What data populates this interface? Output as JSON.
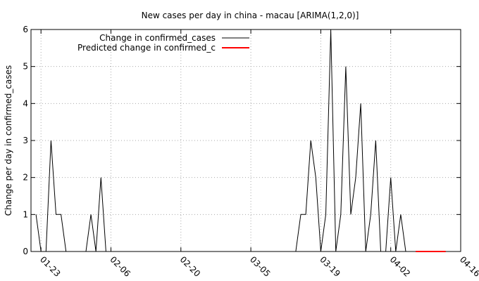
{
  "chart_data": {
    "type": "line",
    "title": "New cases per day in china - macau [ARIMA(1,2,0)]",
    "ylabel": "Change per day in confirmed_cases",
    "xlabel": "",
    "xlim": [
      "2020-01-21",
      "2020-04-16"
    ],
    "ylim": [
      0,
      6
    ],
    "x_ticks": [
      "01-23",
      "02-06",
      "02-20",
      "03-05",
      "03-19",
      "04-02",
      "04-16"
    ],
    "y_ticks": [
      0,
      1,
      2,
      3,
      4,
      5,
      6
    ],
    "grid": true,
    "legend_position": "top-left",
    "series": [
      {
        "name": "Change in confirmed_cases",
        "color": "#000000",
        "points": [
          [
            "2020-01-22",
            1
          ],
          [
            "2020-01-23",
            0
          ],
          [
            "2020-01-24",
            0
          ],
          [
            "2020-01-25",
            3
          ],
          [
            "2020-01-26",
            1
          ],
          [
            "2020-01-27",
            1
          ],
          [
            "2020-01-28",
            0
          ],
          [
            "2020-01-29",
            0
          ],
          [
            "2020-01-30",
            0
          ],
          [
            "2020-01-31",
            0
          ],
          [
            "2020-02-01",
            0
          ],
          [
            "2020-02-02",
            1
          ],
          [
            "2020-02-03",
            0
          ],
          [
            "2020-02-04",
            2
          ],
          [
            "2020-02-05",
            0
          ],
          [
            "2020-02-06",
            0
          ],
          [
            "2020-02-10",
            0
          ],
          [
            "2020-02-20",
            0
          ],
          [
            "2020-03-05",
            0
          ],
          [
            "2020-03-14",
            0
          ],
          [
            "2020-03-15",
            1
          ],
          [
            "2020-03-16",
            1
          ],
          [
            "2020-03-17",
            3
          ],
          [
            "2020-03-18",
            2
          ],
          [
            "2020-03-19",
            0
          ],
          [
            "2020-03-20",
            1
          ],
          [
            "2020-03-21",
            6
          ],
          [
            "2020-03-22",
            0
          ],
          [
            "2020-03-23",
            1
          ],
          [
            "2020-03-24",
            5
          ],
          [
            "2020-03-25",
            1
          ],
          [
            "2020-03-26",
            2
          ],
          [
            "2020-03-27",
            4
          ],
          [
            "2020-03-28",
            0
          ],
          [
            "2020-03-29",
            1
          ],
          [
            "2020-03-30",
            3
          ],
          [
            "2020-03-31",
            0
          ],
          [
            "2020-04-01",
            0
          ],
          [
            "2020-04-02",
            2
          ],
          [
            "2020-04-03",
            0
          ],
          [
            "2020-04-04",
            1
          ],
          [
            "2020-04-05",
            0
          ]
        ]
      },
      {
        "name": "Predicted change in confirmed_c",
        "color": "#ff0000",
        "points": [
          [
            "2020-04-07",
            0
          ],
          [
            "2020-04-08",
            0
          ],
          [
            "2020-04-09",
            0
          ],
          [
            "2020-04-10",
            0
          ],
          [
            "2020-04-11",
            0
          ],
          [
            "2020-04-12",
            0
          ],
          [
            "2020-04-13",
            0
          ]
        ]
      }
    ]
  }
}
